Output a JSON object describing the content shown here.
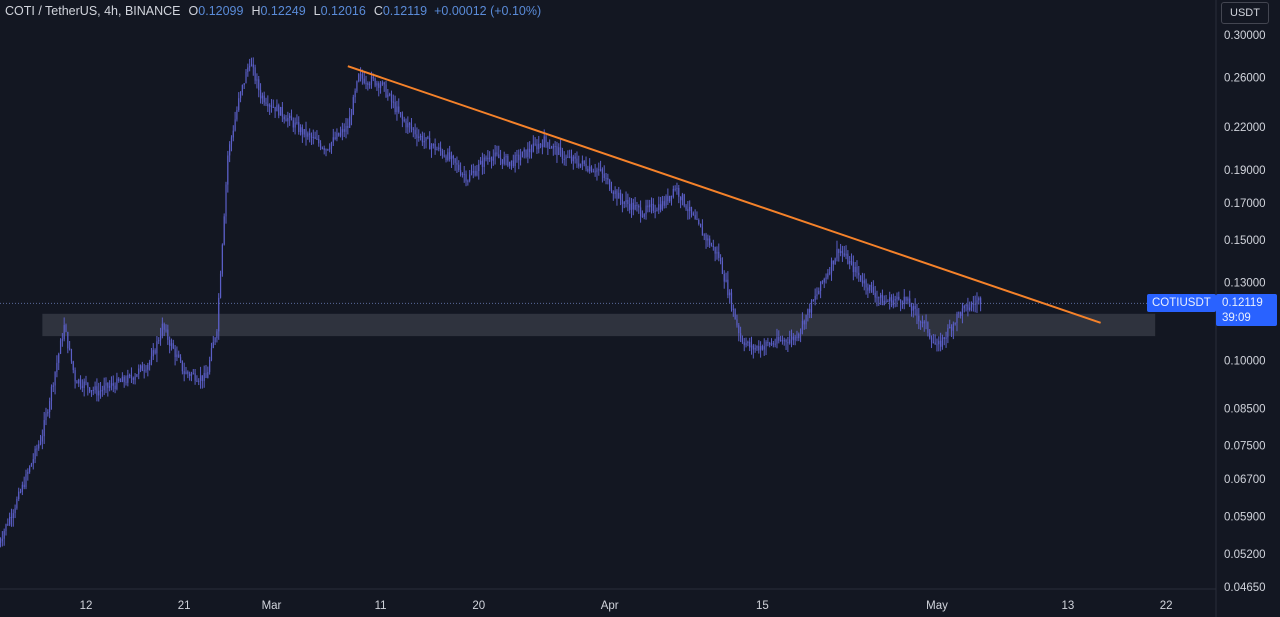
{
  "legend": {
    "symbol": "COTI / TetherUS, 4h, BINANCE",
    "o_label": "O",
    "o_value": "0.12099",
    "h_label": "H",
    "h_value": "0.12249",
    "l_label": "L",
    "l_value": "0.12016",
    "c_label": "C",
    "c_value": "0.12119",
    "change": "+0.00012 (+0.10%)"
  },
  "currency": "USDT",
  "price_badge": {
    "symbol": "COTIUSDT",
    "price": "0.12119",
    "countdown": "39:09"
  },
  "colors": {
    "background": "#131722",
    "candles": "#5b5fc7",
    "trendline": "#f5822a",
    "zone": "#3a3d48",
    "badge": "#2962ff"
  },
  "chart_data": {
    "type": "candlestick",
    "y_scale": "log",
    "ylim": [
      0.0465,
      0.305
    ],
    "y_ticks": [
      "0.30000",
      "0.26000",
      "0.22000",
      "0.19000",
      "0.17000",
      "0.15000",
      "0.13000",
      "0.10000",
      "0.08500",
      "0.07500",
      "0.06700",
      "0.05900",
      "0.05200",
      "0.04650"
    ],
    "x_ticks": [
      "12",
      "21",
      "Mar",
      "11",
      "20",
      "Apr",
      "15",
      "May",
      "13",
      "22"
    ],
    "current_price": 0.12119,
    "price_path": [
      [
        "Feb 4",
        0.054
      ],
      [
        "Feb 6",
        0.064
      ],
      [
        "Feb 8",
        0.078
      ],
      [
        "Feb 10",
        0.112
      ],
      [
        "Feb 11",
        0.094
      ],
      [
        "Feb 13",
        0.09
      ],
      [
        "Feb 16",
        0.094
      ],
      [
        "Feb 18",
        0.1
      ],
      [
        "Feb 19",
        0.112
      ],
      [
        "Feb 21",
        0.096
      ],
      [
        "Feb 23",
        0.094
      ],
      [
        "Feb 24",
        0.112
      ],
      [
        "Feb 25",
        0.2
      ],
      [
        "Feb 26",
        0.24
      ],
      [
        "Feb 27",
        0.275
      ],
      [
        "Feb 28",
        0.245
      ],
      [
        "Mar 2",
        0.23
      ],
      [
        "Mar 4",
        0.215
      ],
      [
        "Mar 6",
        0.205
      ],
      [
        "Mar 8",
        0.22
      ],
      [
        "Mar 9",
        0.26
      ],
      [
        "Mar 11",
        0.255
      ],
      [
        "Mar 13",
        0.225
      ],
      [
        "Mar 15",
        0.21
      ],
      [
        "Mar 17",
        0.2
      ],
      [
        "Mar 19",
        0.185
      ],
      [
        "Mar 21",
        0.2
      ],
      [
        "Mar 23",
        0.195
      ],
      [
        "Mar 26",
        0.21
      ],
      [
        "Mar 28",
        0.198
      ],
      [
        "Mar 31",
        0.19
      ],
      [
        "Apr 2",
        0.172
      ],
      [
        "Apr 4",
        0.165
      ],
      [
        "Apr 6",
        0.17
      ],
      [
        "Apr 7",
        0.18
      ],
      [
        "Apr 9",
        0.158
      ],
      [
        "Apr 11",
        0.142
      ],
      [
        "Apr 13",
        0.108
      ],
      [
        "Apr 14",
        0.104
      ],
      [
        "Apr 16",
        0.106
      ],
      [
        "Apr 18",
        0.108
      ],
      [
        "Apr 20",
        0.125
      ],
      [
        "Apr 22",
        0.146
      ],
      [
        "Apr 24",
        0.132
      ],
      [
        "Apr 26",
        0.122
      ],
      [
        "Apr 28",
        0.123
      ],
      [
        "Apr 30",
        0.112
      ],
      [
        "May 1",
        0.104
      ],
      [
        "May 3",
        0.117
      ],
      [
        "May 5",
        0.123
      ]
    ],
    "annotations": [
      {
        "type": "trendline",
        "from": [
          "Mar 8",
          0.27
        ],
        "to": [
          "May 16",
          0.1135
        ]
      },
      {
        "type": "zone",
        "x_range": [
          "Feb 8",
          "May 21"
        ],
        "y_range": [
          0.1085,
          0.117
        ]
      }
    ]
  }
}
